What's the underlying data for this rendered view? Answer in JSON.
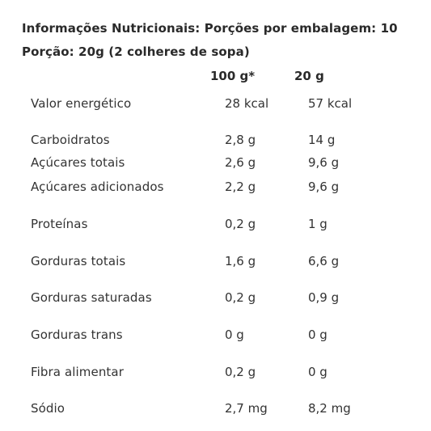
{
  "header": {
    "title": "Informações Nutricionais: Porções por embalagem: 10",
    "portion": "Porção: 20g (2 colheres de sopa)"
  },
  "columns": [
    "100 g*",
    "20 g"
  ],
  "rows": [
    {
      "label": "Valor energético",
      "v1": "28 kcal",
      "v2": "57 kcal"
    },
    {
      "label": "Carboidratos",
      "v1": "2,8 g",
      "v2": "14 g"
    },
    {
      "label": "Açúcares totais",
      "v1": "2,6 g",
      "v2": "9,6 g"
    },
    {
      "label": "Açúcares adicionados",
      "v1": "2,2 g",
      "v2": "9,6 g"
    },
    {
      "label": "Proteínas",
      "v1": "0,2 g",
      "v2": "1 g"
    },
    {
      "label": "Gorduras totais",
      "v1": "1,6 g",
      "v2": "6,6 g"
    },
    {
      "label": "Gorduras saturadas",
      "v1": "0,2 g",
      "v2": "0,9 g"
    },
    {
      "label": "Gorduras trans",
      "v1": "0 g",
      "v2": "0 g"
    },
    {
      "label": "Fibra alimentar",
      "v1": "0,2 g",
      "v2": "0 g"
    },
    {
      "label": "Sódio",
      "v1": "2,7 mg",
      "v2": "8,2 mg"
    }
  ]
}
